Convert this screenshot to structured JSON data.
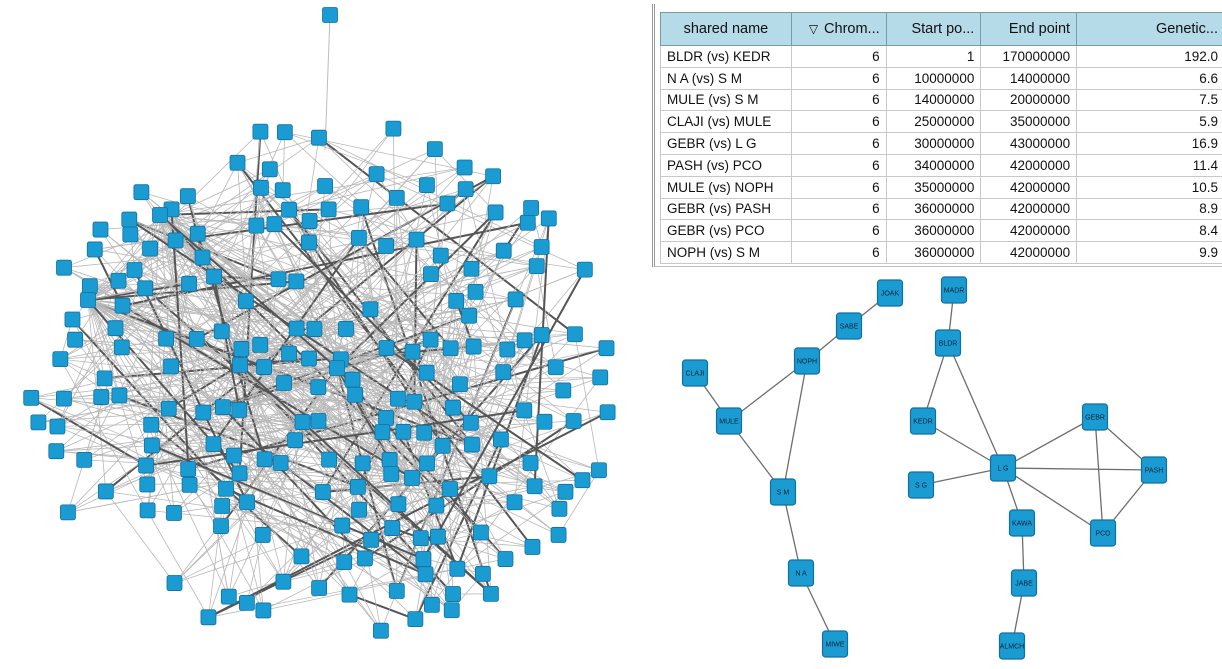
{
  "colors": {
    "node_fill": "#1a9bd1",
    "node_border": "#1270a0",
    "edge": "#8c8c8c",
    "edge_dark": "#555555",
    "header_bg": "#b5dbe8"
  },
  "table": {
    "headers": [
      "shared name",
      "Chrom...",
      "Start po...",
      "End point",
      "Genetic..."
    ],
    "sort_icon": "sort-descending-icon",
    "rows": [
      [
        "BLDR (vs) KEDR",
        "6",
        "1",
        "170000000",
        "192.0"
      ],
      [
        "N A (vs) S M",
        "6",
        "10000000",
        "14000000",
        "6.6"
      ],
      [
        "MULE (vs) S M",
        "6",
        "14000000",
        "20000000",
        "7.5"
      ],
      [
        "CLAJI (vs) MULE",
        "6",
        "25000000",
        "35000000",
        "5.9"
      ],
      [
        "GEBR (vs) L G",
        "6",
        "30000000",
        "43000000",
        "16.9"
      ],
      [
        "PASH (vs) PCO",
        "6",
        "34000000",
        "42000000",
        "11.4"
      ],
      [
        "MULE (vs) NOPH",
        "6",
        "35000000",
        "42000000",
        "10.5"
      ],
      [
        "GEBR (vs) PASH",
        "6",
        "36000000",
        "42000000",
        "8.9"
      ],
      [
        "GEBR (vs) PCO",
        "6",
        "36000000",
        "42000000",
        "8.4"
      ],
      [
        "NOPH (vs) S M",
        "6",
        "36000000",
        "42000000",
        "9.9"
      ]
    ]
  },
  "subnetwork": {
    "nodes": [
      "JOAK",
      "SABE",
      "NOPH",
      "CLAJI",
      "MULE",
      "S M",
      "N A",
      "MIWE",
      "MADR",
      "BLDR",
      "KEDR",
      "S G",
      "L G",
      "GEBR",
      "PASH",
      "PCO",
      "KAWA",
      "JABE",
      "ALMCH"
    ],
    "edges": [
      [
        "NOPH",
        "SABE"
      ],
      [
        "SABE",
        "JOAK"
      ],
      [
        "CLAJI",
        "MULE"
      ],
      [
        "MULE",
        "NOPH"
      ],
      [
        "NOPH",
        "S M"
      ],
      [
        "MULE",
        "S M"
      ],
      [
        "S M",
        "N A"
      ],
      [
        "N A",
        "MIWE"
      ],
      [
        "MADR",
        "BLDR"
      ],
      [
        "BLDR",
        "KEDR"
      ],
      [
        "BLDR",
        "L G"
      ],
      [
        "KEDR",
        "L G"
      ],
      [
        "S G",
        "L G"
      ],
      [
        "L G",
        "GEBR"
      ],
      [
        "L G",
        "PASH"
      ],
      [
        "L G",
        "PCO"
      ],
      [
        "L G",
        "KAWA"
      ],
      [
        "GEBR",
        "PASH"
      ],
      [
        "GEBR",
        "PCO"
      ],
      [
        "PASH",
        "PCO"
      ],
      [
        "KAWA",
        "JABE"
      ],
      [
        "JABE",
        "ALMCH"
      ]
    ]
  }
}
